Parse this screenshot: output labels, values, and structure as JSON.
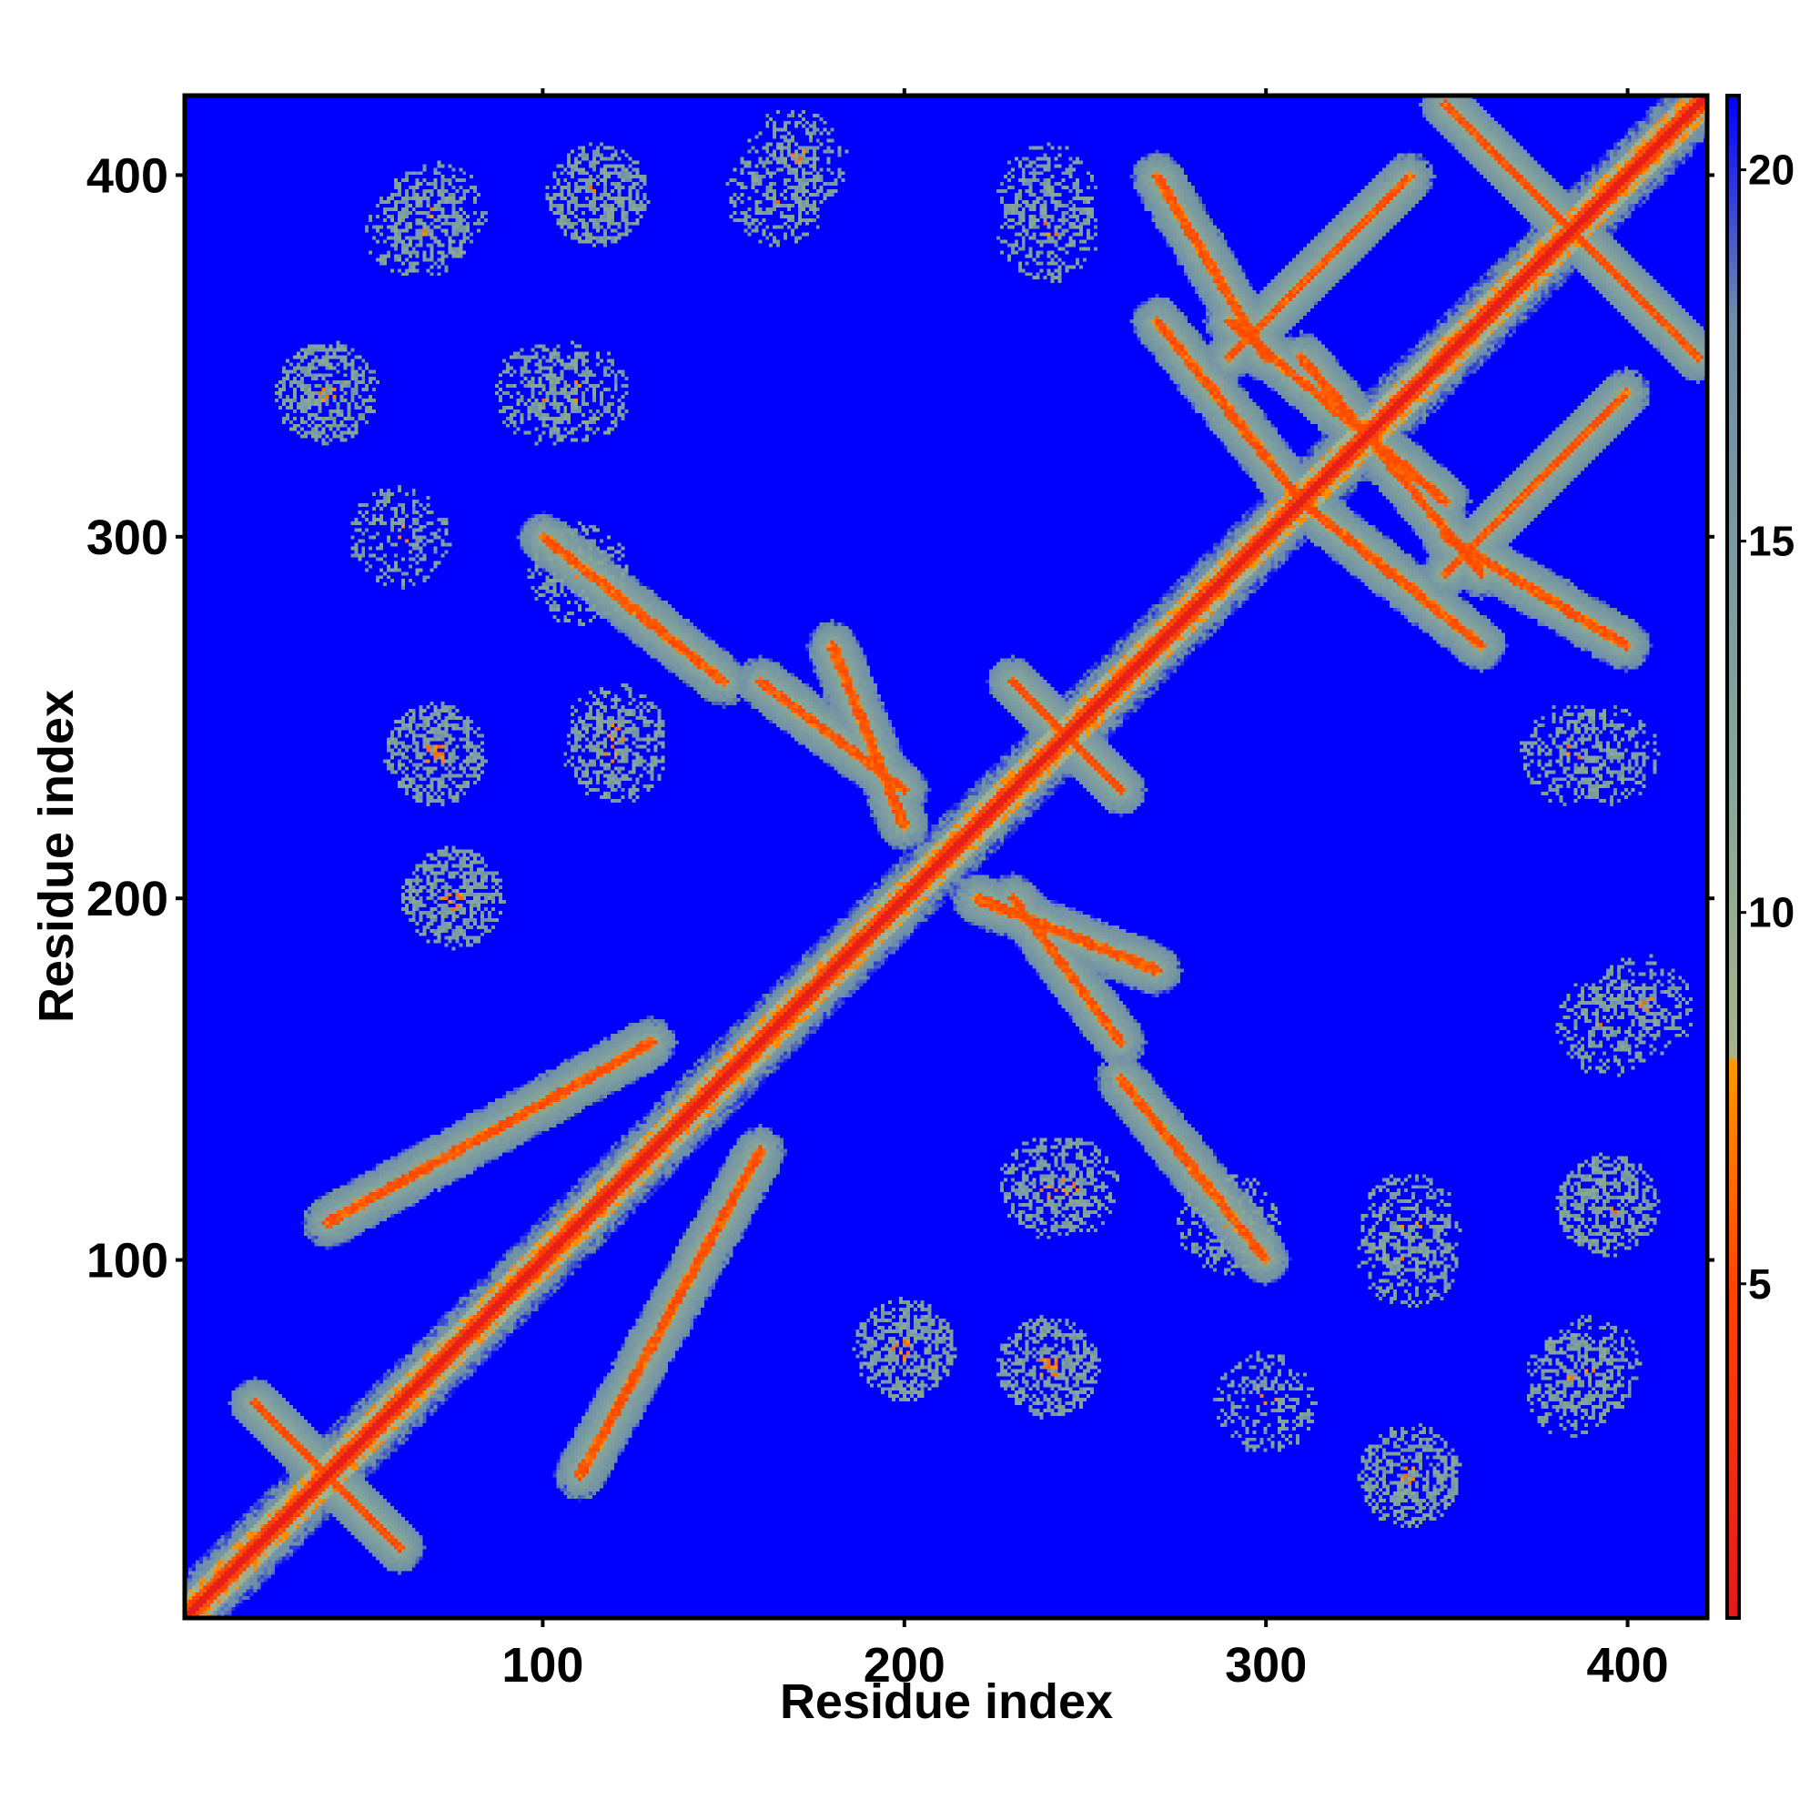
{
  "chart_data": {
    "type": "heatmap",
    "title": "",
    "xlabel": "Residue index",
    "ylabel": "Residue index",
    "xlim": [
      1,
      422
    ],
    "ylim": [
      1,
      422
    ],
    "x_ticks": [
      100,
      200,
      300,
      400
    ],
    "y_ticks": [
      100,
      200,
      300,
      400
    ],
    "x_tick_labels": [
      "100",
      "200",
      "300",
      "400"
    ],
    "y_tick_labels": [
      "100",
      "200",
      "300",
      "400"
    ],
    "colorbar": {
      "range": [
        0.5,
        21
      ],
      "ticks": [
        5,
        10,
        15,
        20
      ],
      "tick_labels": [
        "5",
        "10",
        "15",
        "20"
      ],
      "colors": {
        "near": "#e41a1c",
        "mid_low": "#ff8c00",
        "mid": "#8fa88c",
        "far": "#0000ff"
      },
      "stops": [
        {
          "value": 0.5,
          "color": "#e41a1c"
        },
        {
          "value": 5,
          "color": "#ff4500"
        },
        {
          "value": 8,
          "color": "#ff9900"
        },
        {
          "value": 8.01,
          "color": "#a8b48c"
        },
        {
          "value": 12,
          "color": "#86a59a"
        },
        {
          "value": 18,
          "color": "#6f8fa8"
        },
        {
          "value": 21,
          "color": "#0000ff"
        }
      ]
    },
    "features": {
      "diagonal": {
        "from": 1,
        "to": 422
      },
      "contact_bands": [
        {
          "x": [
            20,
            60
          ],
          "y": [
            60,
            20
          ]
        },
        {
          "x": [
            40,
            130
          ],
          "y": [
            110,
            160
          ]
        },
        {
          "x": [
            100,
            150
          ],
          "y": [
            300,
            260
          ]
        },
        {
          "x": [
            160,
            200
          ],
          "y": [
            260,
            230
          ]
        },
        {
          "x": [
            160,
            200
          ],
          "y": [
            160,
            200
          ]
        },
        {
          "x": [
            230,
            260
          ],
          "y": [
            260,
            230
          ]
        },
        {
          "x": [
            220,
            270
          ],
          "y": [
            200,
            180
          ]
        },
        {
          "x": [
            290,
            340
          ],
          "y": [
            350,
            400
          ]
        },
        {
          "x": [
            290,
            350
          ],
          "y": [
            360,
            310
          ]
        },
        {
          "x": [
            310,
            360
          ],
          "y": [
            310,
            270
          ]
        },
        {
          "x": [
            350,
            400
          ],
          "y": [
            300,
            270
          ]
        },
        {
          "x": [
            350,
            410
          ],
          "y": [
            420,
            360
          ]
        },
        {
          "x": [
            300,
            330
          ],
          "y": [
            300,
            330
          ]
        }
      ],
      "contact_clusters": [
        {
          "x": 70,
          "y": 390
        },
        {
          "x": 115,
          "y": 395
        },
        {
          "x": 170,
          "y": 405
        },
        {
          "x": 240,
          "y": 385
        },
        {
          "x": 110,
          "y": 340
        },
        {
          "x": 40,
          "y": 340
        },
        {
          "x": 70,
          "y": 240
        },
        {
          "x": 120,
          "y": 245
        },
        {
          "x": 75,
          "y": 200
        },
        {
          "x": 395,
          "y": 240
        },
        {
          "x": 395,
          "y": 165
        },
        {
          "x": 395,
          "y": 115
        },
        {
          "x": 340,
          "y": 100
        },
        {
          "x": 385,
          "y": 65
        },
        {
          "x": 340,
          "y": 40
        },
        {
          "x": 240,
          "y": 70
        },
        {
          "x": 300,
          "y": 60
        },
        {
          "x": 200,
          "y": 75
        },
        {
          "x": 290,
          "y": 110
        },
        {
          "x": 240,
          "y": 120
        }
      ]
    }
  }
}
